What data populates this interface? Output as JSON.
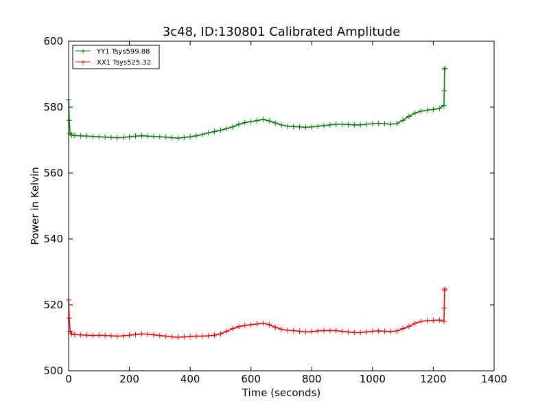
{
  "chart_data": {
    "type": "line",
    "title": "3c48, ID:130801 Calibrated Amplitude",
    "xlabel": "Time (seconds)",
    "ylabel": "Power in Kelvin",
    "xlim": [
      0,
      1400
    ],
    "ylim": [
      500,
      600
    ],
    "x_ticks": [
      "0",
      "200",
      "400",
      "600",
      "800",
      "1000",
      "1200",
      "1400"
    ],
    "y_ticks": [
      "500",
      "520",
      "540",
      "560",
      "580",
      "600"
    ],
    "grid": false,
    "legend_position": "top-left",
    "marker": "+",
    "series": [
      {
        "name": "YY1 Tsys599.88",
        "color": "#008000",
        "x": [
          0,
          2,
          5,
          10,
          20,
          40,
          60,
          80,
          100,
          120,
          140,
          160,
          180,
          200,
          220,
          240,
          260,
          280,
          300,
          320,
          340,
          360,
          380,
          400,
          420,
          440,
          460,
          480,
          500,
          520,
          540,
          560,
          580,
          600,
          620,
          640,
          660,
          680,
          700,
          720,
          740,
          760,
          780,
          800,
          820,
          840,
          860,
          880,
          900,
          920,
          940,
          960,
          980,
          1000,
          1020,
          1040,
          1060,
          1080,
          1100,
          1120,
          1140,
          1160,
          1180,
          1200,
          1220,
          1235,
          1236,
          1237,
          1238
        ],
        "y": [
          582.3,
          576.0,
          572.0,
          571.5,
          571.4,
          571.3,
          571.2,
          571.1,
          571.0,
          570.9,
          570.8,
          570.7,
          570.8,
          571.0,
          571.2,
          571.3,
          571.2,
          571.1,
          571.0,
          570.9,
          570.7,
          570.6,
          570.8,
          571.0,
          571.3,
          571.7,
          572.2,
          572.6,
          573.0,
          573.5,
          574.0,
          574.8,
          575.3,
          575.6,
          575.9,
          576.3,
          575.8,
          575.2,
          574.6,
          574.2,
          574.1,
          574.0,
          573.9,
          574.0,
          574.2,
          574.4,
          574.6,
          574.8,
          574.8,
          574.7,
          574.6,
          574.6,
          574.8,
          575.0,
          575.1,
          575.0,
          574.8,
          575.0,
          576.0,
          577.2,
          578.2,
          578.8,
          579.1,
          579.3,
          579.6,
          580.5,
          585.0,
          591.5,
          591.8
        ]
      },
      {
        "name": "XX1 Tsys525.32",
        "color": "#ff0000",
        "x": [
          0,
          2,
          5,
          10,
          20,
          40,
          60,
          80,
          100,
          120,
          140,
          160,
          180,
          200,
          220,
          240,
          260,
          280,
          300,
          320,
          340,
          360,
          380,
          400,
          420,
          440,
          460,
          480,
          500,
          520,
          540,
          560,
          580,
          600,
          620,
          640,
          660,
          680,
          700,
          720,
          740,
          760,
          780,
          800,
          820,
          840,
          860,
          880,
          900,
          920,
          940,
          960,
          980,
          1000,
          1020,
          1040,
          1060,
          1080,
          1100,
          1120,
          1140,
          1160,
          1180,
          1200,
          1220,
          1235,
          1236,
          1237,
          1238
        ],
        "y": [
          521.5,
          516.0,
          512.0,
          511.2,
          511.0,
          510.9,
          510.8,
          510.7,
          510.8,
          510.7,
          510.6,
          510.5,
          510.6,
          510.8,
          511.0,
          511.2,
          511.1,
          510.9,
          510.7,
          510.5,
          510.3,
          510.2,
          510.3,
          510.4,
          510.5,
          510.5,
          510.6,
          510.8,
          511.2,
          512.0,
          512.8,
          513.4,
          513.8,
          514.0,
          514.2,
          514.4,
          514.0,
          513.2,
          512.6,
          512.3,
          512.2,
          512.0,
          511.8,
          511.9,
          512.1,
          512.2,
          512.2,
          512.2,
          512.0,
          511.8,
          511.6,
          511.6,
          511.8,
          512.0,
          512.1,
          512.0,
          511.9,
          512.1,
          512.8,
          513.5,
          514.4,
          515.0,
          515.2,
          515.3,
          515.4,
          515.0,
          519.0,
          524.5,
          524.8
        ]
      }
    ]
  }
}
